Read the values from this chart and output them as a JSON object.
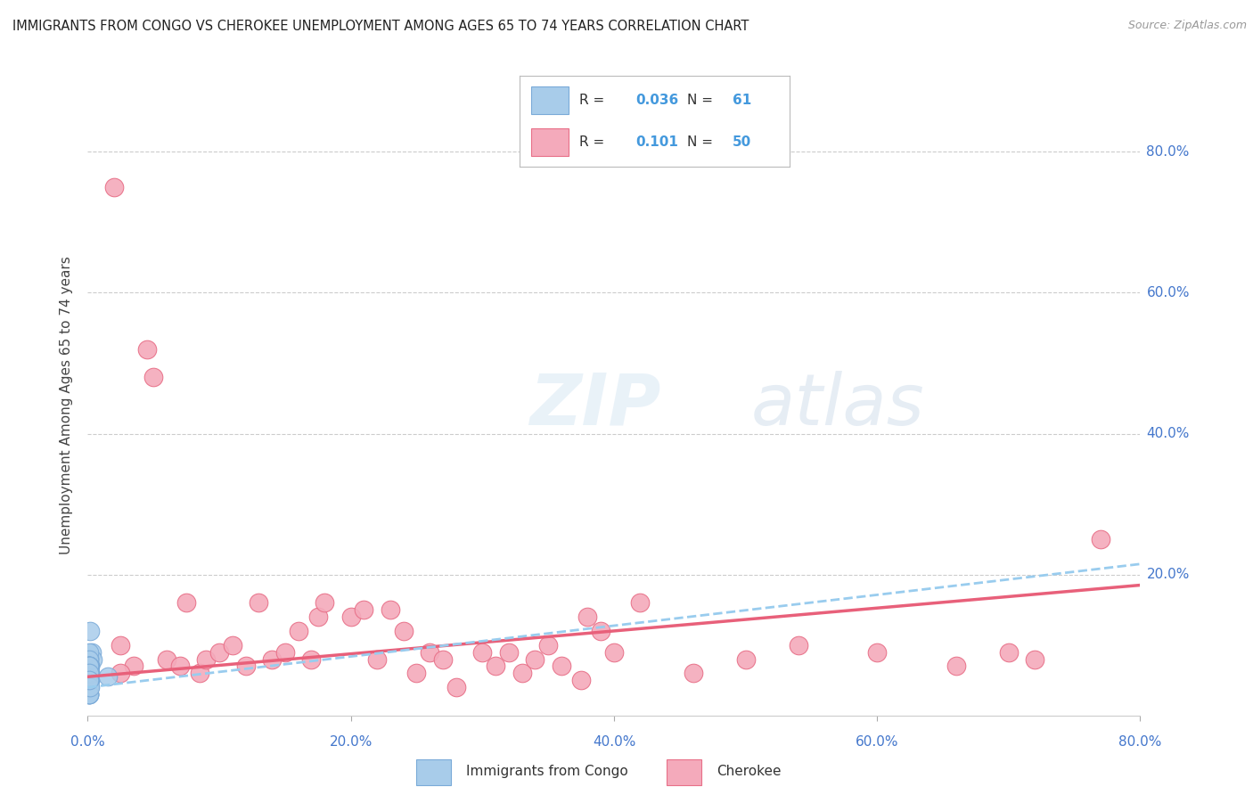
{
  "title": "IMMIGRANTS FROM CONGO VS CHEROKEE UNEMPLOYMENT AMONG AGES 65 TO 74 YEARS CORRELATION CHART",
  "source": "Source: ZipAtlas.com",
  "ylabel": "Unemployment Among Ages 65 to 74 years",
  "xlim": [
    0.0,
    0.8
  ],
  "ylim": [
    0.0,
    0.88
  ],
  "xticks": [
    0.0,
    0.2,
    0.4,
    0.6,
    0.8
  ],
  "xticklabels": [
    "0.0%",
    "20.0%",
    "40.0%",
    "60.0%",
    "80.0%"
  ],
  "yticks": [
    0.2,
    0.4,
    0.6,
    0.8
  ],
  "yticklabels": [
    "20.0%",
    "40.0%",
    "60.0%",
    "80.0%"
  ],
  "congo_color": "#A8CCEA",
  "cherokee_color": "#F4AABB",
  "congo_edge_color": "#7AAAD8",
  "cherokee_edge_color": "#E87088",
  "trend_congo_color": "#99CCEE",
  "trend_cherokee_color": "#E8607A",
  "R_congo": 0.036,
  "N_congo": 61,
  "R_cherokee": 0.101,
  "N_cherokee": 50,
  "watermark": "ZIPatlas",
  "legend_labels": [
    "Immigrants from Congo",
    "Cherokee"
  ],
  "congo_x": [
    0.002,
    0.003,
    0.002,
    0.004,
    0.001,
    0.002,
    0.001,
    0.001,
    0.001,
    0.001,
    0.001,
    0.002,
    0.001,
    0.002,
    0.001,
    0.001,
    0.001,
    0.001,
    0.002,
    0.001,
    0.001,
    0.001,
    0.001,
    0.001,
    0.001,
    0.001,
    0.001,
    0.001,
    0.001,
    0.001,
    0.001,
    0.001,
    0.001,
    0.001,
    0.001,
    0.001,
    0.001,
    0.001,
    0.001,
    0.001,
    0.001,
    0.001,
    0.001,
    0.001,
    0.001,
    0.001,
    0.001,
    0.001,
    0.001,
    0.001,
    0.001,
    0.002,
    0.001,
    0.001,
    0.001,
    0.001,
    0.001,
    0.001,
    0.002,
    0.001,
    0.015
  ],
  "congo_y": [
    0.12,
    0.09,
    0.07,
    0.08,
    0.06,
    0.05,
    0.05,
    0.06,
    0.04,
    0.04,
    0.08,
    0.07,
    0.06,
    0.05,
    0.04,
    0.09,
    0.07,
    0.05,
    0.06,
    0.08,
    0.04,
    0.05,
    0.06,
    0.07,
    0.04,
    0.05,
    0.03,
    0.06,
    0.05,
    0.04,
    0.06,
    0.07,
    0.05,
    0.04,
    0.03,
    0.06,
    0.05,
    0.07,
    0.04,
    0.05,
    0.06,
    0.04,
    0.05,
    0.06,
    0.07,
    0.04,
    0.05,
    0.03,
    0.06,
    0.05,
    0.04,
    0.06,
    0.07,
    0.05,
    0.04,
    0.03,
    0.05,
    0.06,
    0.04,
    0.05,
    0.055
  ],
  "cherokee_x": [
    0.02,
    0.025,
    0.035,
    0.045,
    0.05,
    0.06,
    0.07,
    0.075,
    0.085,
    0.09,
    0.1,
    0.11,
    0.12,
    0.13,
    0.14,
    0.15,
    0.16,
    0.17,
    0.175,
    0.18,
    0.2,
    0.21,
    0.22,
    0.23,
    0.24,
    0.25,
    0.26,
    0.27,
    0.28,
    0.3,
    0.31,
    0.32,
    0.33,
    0.34,
    0.35,
    0.36,
    0.375,
    0.38,
    0.39,
    0.4,
    0.42,
    0.46,
    0.5,
    0.54,
    0.6,
    0.66,
    0.7,
    0.72,
    0.77,
    0.025
  ],
  "cherokee_y": [
    0.75,
    0.1,
    0.07,
    0.52,
    0.48,
    0.08,
    0.07,
    0.16,
    0.06,
    0.08,
    0.09,
    0.1,
    0.07,
    0.16,
    0.08,
    0.09,
    0.12,
    0.08,
    0.14,
    0.16,
    0.14,
    0.15,
    0.08,
    0.15,
    0.12,
    0.06,
    0.09,
    0.08,
    0.04,
    0.09,
    0.07,
    0.09,
    0.06,
    0.08,
    0.1,
    0.07,
    0.05,
    0.14,
    0.12,
    0.09,
    0.16,
    0.06,
    0.08,
    0.1,
    0.09,
    0.07,
    0.09,
    0.08,
    0.25,
    0.06
  ],
  "cherokee_trend_start": 0.055,
  "cherokee_trend_end": 0.185,
  "congo_trend_start": 0.04,
  "congo_trend_end": 0.215
}
